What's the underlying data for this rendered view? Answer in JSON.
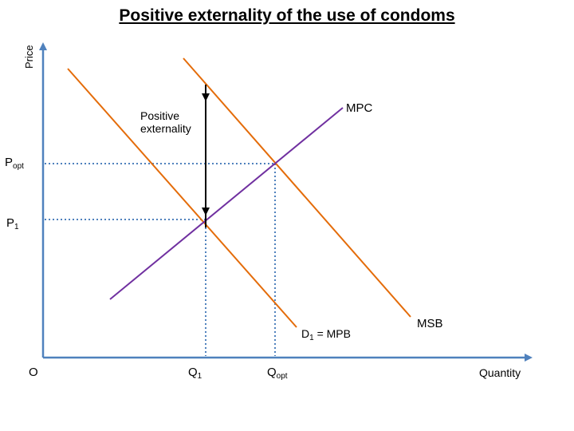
{
  "title": "Positive externality of the use of condoms",
  "axes": {
    "y_label": "Price",
    "x_label": "Quantity",
    "origin": "O"
  },
  "prices": {
    "p_opt": {
      "main": "P",
      "sub": "opt"
    },
    "p_1": {
      "main": "P",
      "sub": "1"
    }
  },
  "quantities": {
    "q_1": {
      "main": "Q",
      "sub": "1"
    },
    "q_opt": {
      "main": "Q",
      "sub": "opt"
    }
  },
  "curves": {
    "mpc": "MPC",
    "msb": "MSB",
    "demand": {
      "main": "D",
      "sub": "1",
      "rest": " = MPB"
    }
  },
  "annotation": {
    "line1": "Positive",
    "line2": "externality"
  },
  "colors": {
    "axis": "#4f81bd",
    "demand_curve": "#e46c0a",
    "msb_curve": "#e46c0a",
    "mpc_curve": "#7030a0",
    "guide_lines": "#4f81bd",
    "arrow": "#000000"
  }
}
